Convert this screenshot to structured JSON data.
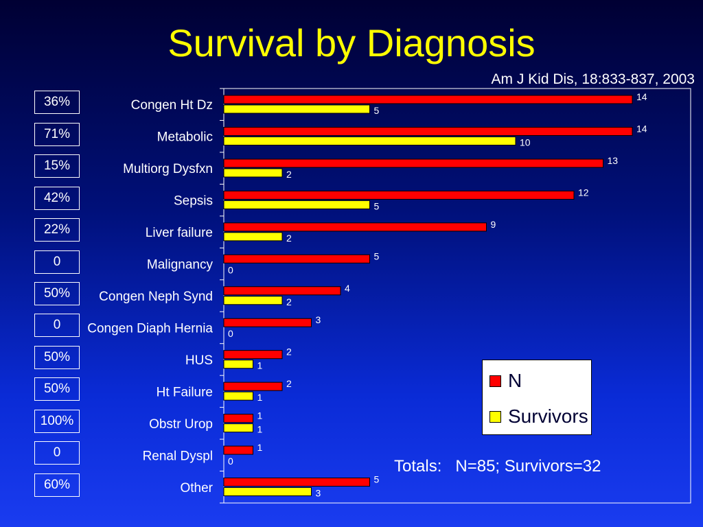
{
  "title": "Survival by Diagnosis",
  "citation": "Am J Kid Dis, 18:833-837, 2003",
  "totals": {
    "label": "Totals:",
    "value": "N=85; Survivors=32"
  },
  "colors": {
    "n_bar": "#ff0000",
    "survivors_bar": "#ffff00",
    "title": "#ffff00"
  },
  "chart_data": {
    "type": "bar",
    "orientation": "horizontal",
    "categories": [
      "Congen Ht Dz",
      "Metabolic",
      "Multiorg Dysfxn",
      "Sepsis",
      "Liver failure",
      "Malignancy",
      "Congen Neph Synd",
      "Congen Diaph Hernia",
      "HUS",
      "Ht Failure",
      "Obstr Urop",
      "Renal Dyspl",
      "Other"
    ],
    "series": [
      {
        "name": "N",
        "color": "#ff0000",
        "values": [
          14,
          14,
          13,
          12,
          9,
          5,
          4,
          3,
          2,
          2,
          1,
          1,
          5
        ]
      },
      {
        "name": "Survivors",
        "color": "#ffff00",
        "values": [
          5,
          10,
          2,
          5,
          2,
          0,
          2,
          0,
          1,
          1,
          1,
          0,
          3
        ]
      }
    ],
    "survival_percent": [
      "36%",
      "71%",
      "15%",
      "42%",
      "22%",
      "0",
      "50%",
      "0",
      "50%",
      "50%",
      "100%",
      "0",
      "60%"
    ],
    "xlim": [
      0,
      16
    ],
    "legend_placement": "bottom-right",
    "grid": false
  }
}
